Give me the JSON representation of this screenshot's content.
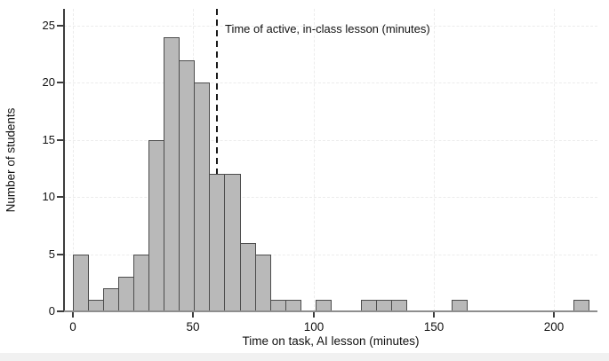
{
  "figure": {
    "y_axis_label": "Number of students",
    "x_axis_label": "Time on task, AI lesson (minutes)",
    "annotation": "Time of active, in-class lesson (minutes)"
  },
  "chart_data": {
    "type": "bar",
    "subtype": "histogram",
    "title": "",
    "xlabel": "Time on task, AI lesson (minutes)",
    "ylabel": "Number of students",
    "x_ticks": [
      0,
      50,
      100,
      150,
      200
    ],
    "y_ticks": [
      0,
      5,
      10,
      15,
      20,
      25
    ],
    "xlim_minutes": [
      -4,
      218
    ],
    "ylim": [
      0,
      26.5
    ],
    "bin_start_minute": 0,
    "bin_width_minutes": 6.3,
    "counts": [
      5,
      1,
      2,
      3,
      5,
      15,
      24,
      22,
      20,
      12,
      12,
      6,
      5,
      1,
      1,
      0,
      1,
      0,
      0,
      1,
      1,
      1,
      0,
      0,
      0,
      1,
      0,
      0,
      0,
      0,
      0,
      0,
      0,
      1
    ],
    "reference_line": {
      "x_minutes": 60,
      "style": "dashed",
      "label": "Time of active, in-class lesson (minutes)"
    },
    "grid": "dashed gridlines at every x and y tick",
    "legend": "none",
    "colors": {
      "bar_fill": "#b9b9b9",
      "bar_border": "#4d4d4d",
      "grid": "#ececec",
      "y_axis": "#3d3d3d",
      "x_axis": "#8e8e8e",
      "reference_line": "#1a1a1a",
      "text": "#111111",
      "background": "#ffffff",
      "bottom_strip": "#f1f1f1"
    }
  }
}
